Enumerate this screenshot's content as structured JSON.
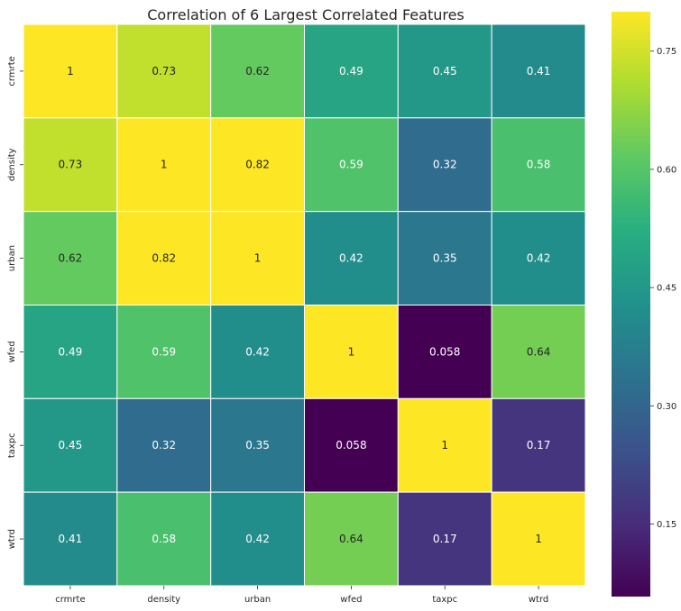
{
  "chart_data": {
    "type": "heatmap",
    "title": "Correlation of 6 Largest Correlated Features",
    "x_labels": [
      "crmrte",
      "density",
      "urban",
      "wfed",
      "taxpc",
      "wtrd"
    ],
    "y_labels": [
      "crmrte",
      "density",
      "urban",
      "wfed",
      "taxpc",
      "wtrd"
    ],
    "values": [
      [
        1,
        0.73,
        0.62,
        0.49,
        0.45,
        0.41
      ],
      [
        0.73,
        1,
        0.82,
        0.59,
        0.32,
        0.58
      ],
      [
        0.62,
        0.82,
        1,
        0.42,
        0.35,
        0.42
      ],
      [
        0.49,
        0.59,
        0.42,
        1,
        0.058,
        0.64
      ],
      [
        0.45,
        0.32,
        0.35,
        0.058,
        1,
        0.17
      ],
      [
        0.41,
        0.58,
        0.42,
        0.64,
        0.17,
        1
      ]
    ],
    "value_labels": [
      [
        "1",
        "0.73",
        "0.62",
        "0.49",
        "0.45",
        "0.41"
      ],
      [
        "0.73",
        "1",
        "0.82",
        "0.59",
        "0.32",
        "0.58"
      ],
      [
        "0.62",
        "0.82",
        "1",
        "0.42",
        "0.35",
        "0.42"
      ],
      [
        "0.49",
        "0.59",
        "0.42",
        "1",
        "0.058",
        "0.64"
      ],
      [
        "0.45",
        "0.32",
        "0.35",
        "0.058",
        "1",
        "0.17"
      ],
      [
        "0.41",
        "0.58",
        "0.42",
        "0.64",
        "0.17",
        "1"
      ]
    ],
    "colormap": "viridis",
    "color_range": [
      0.058,
      0.8
    ],
    "colorbar": {
      "ticks": [
        0.15,
        0.3,
        0.45,
        0.6,
        0.75
      ],
      "tick_labels": [
        "0.15",
        "0.30",
        "0.45",
        "0.60",
        "0.75"
      ],
      "placement": "right"
    },
    "grid_line_color": "#ffffff"
  }
}
